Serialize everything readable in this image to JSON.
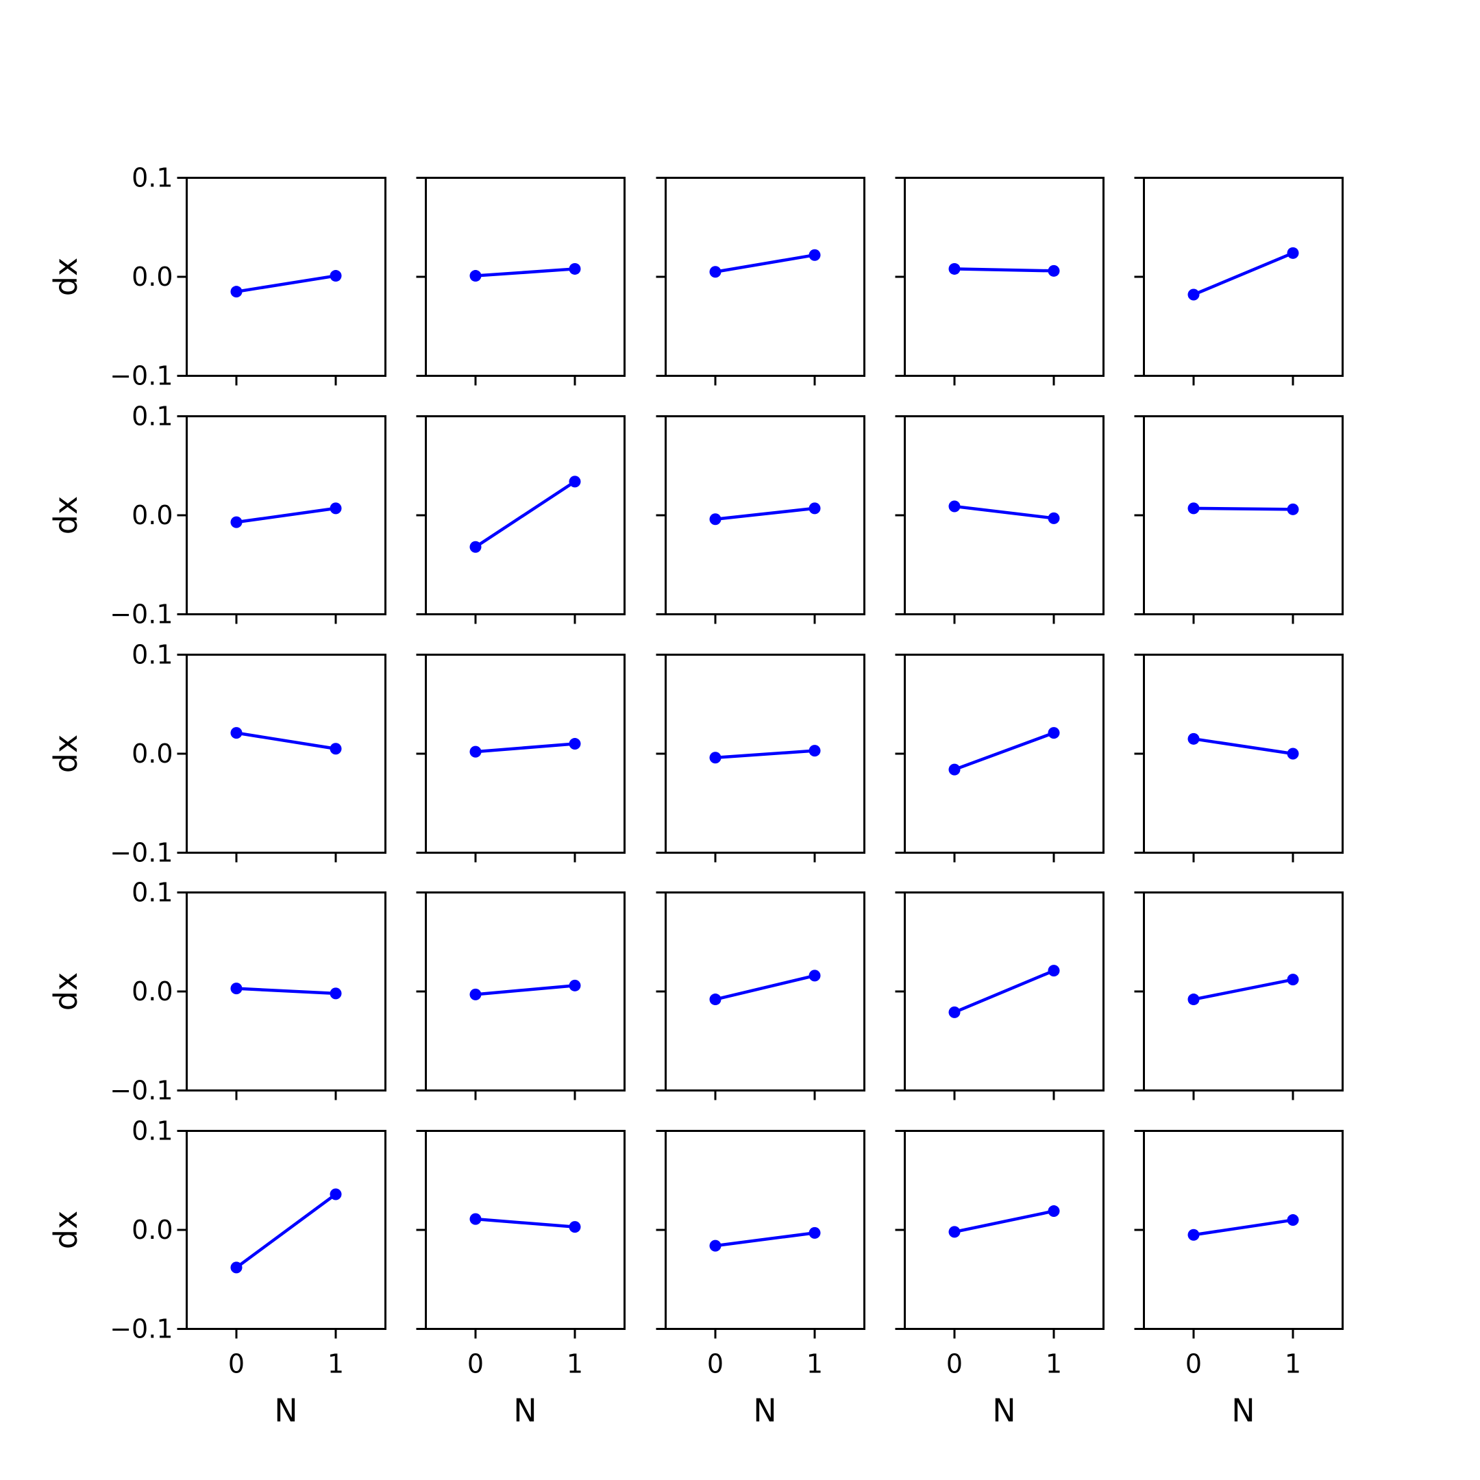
{
  "figure": {
    "background": "#ffffff",
    "line_color": "#0000ff",
    "grid": false,
    "rows": 5,
    "cols": 5,
    "sharex": true,
    "sharey": true
  },
  "chart_data": {
    "type": "line",
    "xlabel": "N",
    "ylabel": "dx",
    "x": [
      0,
      1
    ],
    "xticks": [
      "0",
      "1"
    ],
    "xlim": [
      -0.5,
      1.5
    ],
    "yticks": [
      "0.1",
      "0.0",
      "−0.1"
    ],
    "ytick_values": [
      0.1,
      0.0,
      -0.1
    ],
    "ylim": [
      -0.1,
      0.1
    ],
    "panels": [
      {
        "row": 0,
        "col": 0,
        "values": [
          -0.015,
          0.001
        ]
      },
      {
        "row": 0,
        "col": 1,
        "values": [
          0.001,
          0.008
        ]
      },
      {
        "row": 0,
        "col": 2,
        "values": [
          0.005,
          0.022
        ]
      },
      {
        "row": 0,
        "col": 3,
        "values": [
          0.008,
          0.006
        ]
      },
      {
        "row": 0,
        "col": 4,
        "values": [
          -0.018,
          0.024
        ]
      },
      {
        "row": 1,
        "col": 0,
        "values": [
          -0.007,
          0.007
        ]
      },
      {
        "row": 1,
        "col": 1,
        "values": [
          -0.032,
          0.034
        ]
      },
      {
        "row": 1,
        "col": 2,
        "values": [
          -0.004,
          0.007
        ]
      },
      {
        "row": 1,
        "col": 3,
        "values": [
          0.009,
          -0.003
        ]
      },
      {
        "row": 1,
        "col": 4,
        "values": [
          0.007,
          0.006
        ]
      },
      {
        "row": 2,
        "col": 0,
        "values": [
          0.021,
          0.005
        ]
      },
      {
        "row": 2,
        "col": 1,
        "values": [
          0.002,
          0.01
        ]
      },
      {
        "row": 2,
        "col": 2,
        "values": [
          -0.004,
          0.003
        ]
      },
      {
        "row": 2,
        "col": 3,
        "values": [
          -0.016,
          0.021
        ]
      },
      {
        "row": 2,
        "col": 4,
        "values": [
          0.015,
          0.0
        ]
      },
      {
        "row": 3,
        "col": 0,
        "values": [
          0.003,
          -0.002
        ]
      },
      {
        "row": 3,
        "col": 1,
        "values": [
          -0.003,
          0.006
        ]
      },
      {
        "row": 3,
        "col": 2,
        "values": [
          -0.008,
          0.016
        ]
      },
      {
        "row": 3,
        "col": 3,
        "values": [
          -0.021,
          0.021
        ]
      },
      {
        "row": 3,
        "col": 4,
        "values": [
          -0.008,
          0.012
        ]
      },
      {
        "row": 4,
        "col": 0,
        "values": [
          -0.038,
          0.036
        ]
      },
      {
        "row": 4,
        "col": 1,
        "values": [
          0.011,
          0.003
        ]
      },
      {
        "row": 4,
        "col": 2,
        "values": [
          -0.016,
          -0.003
        ]
      },
      {
        "row": 4,
        "col": 3,
        "values": [
          -0.002,
          0.019
        ]
      },
      {
        "row": 4,
        "col": 4,
        "values": [
          -0.005,
          0.01
        ]
      }
    ]
  }
}
